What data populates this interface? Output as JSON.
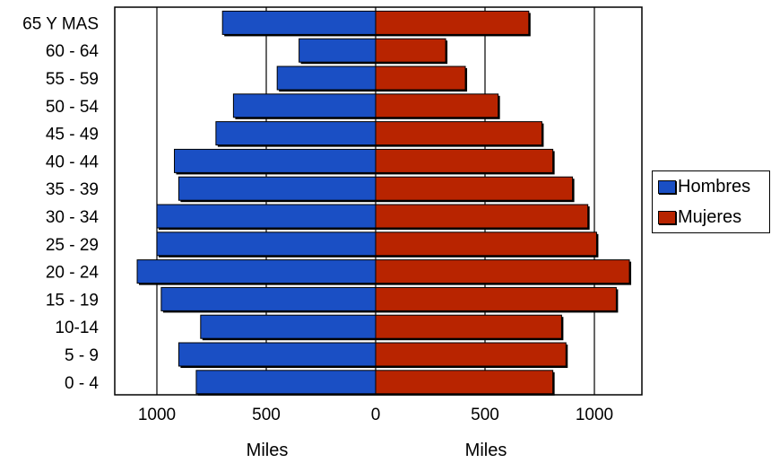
{
  "chart_data": {
    "type": "bar",
    "orientation": "horizontal",
    "layout": "population-pyramid",
    "categories": [
      "0 - 4",
      "5 - 9",
      "10-14",
      "15 - 19",
      "20 - 24",
      "25 - 29",
      "30 - 34",
      "35 - 39",
      "40 - 44",
      "45 - 49",
      "50 - 54",
      "55 - 59",
      "60 - 64",
      "65 Y MAS"
    ],
    "series": [
      {
        "name": "Hombres",
        "color": "#1a4fc4",
        "values": [
          820,
          900,
          800,
          980,
          1090,
          1000,
          1000,
          900,
          920,
          730,
          650,
          450,
          350,
          700
        ]
      },
      {
        "name": "Mujeres",
        "color": "#b82400",
        "values": [
          810,
          870,
          850,
          1100,
          1160,
          1010,
          970,
          900,
          810,
          760,
          560,
          410,
          320,
          700
        ]
      }
    ],
    "xlabel_left": "Miles",
    "xlabel_right": "Miles",
    "x_ticks_left": [
      "1000",
      "500",
      "0"
    ],
    "x_ticks_right": [
      "0",
      "500",
      "1000"
    ],
    "xlim": [
      0,
      1200
    ],
    "grid": true,
    "legend_position": "right"
  }
}
